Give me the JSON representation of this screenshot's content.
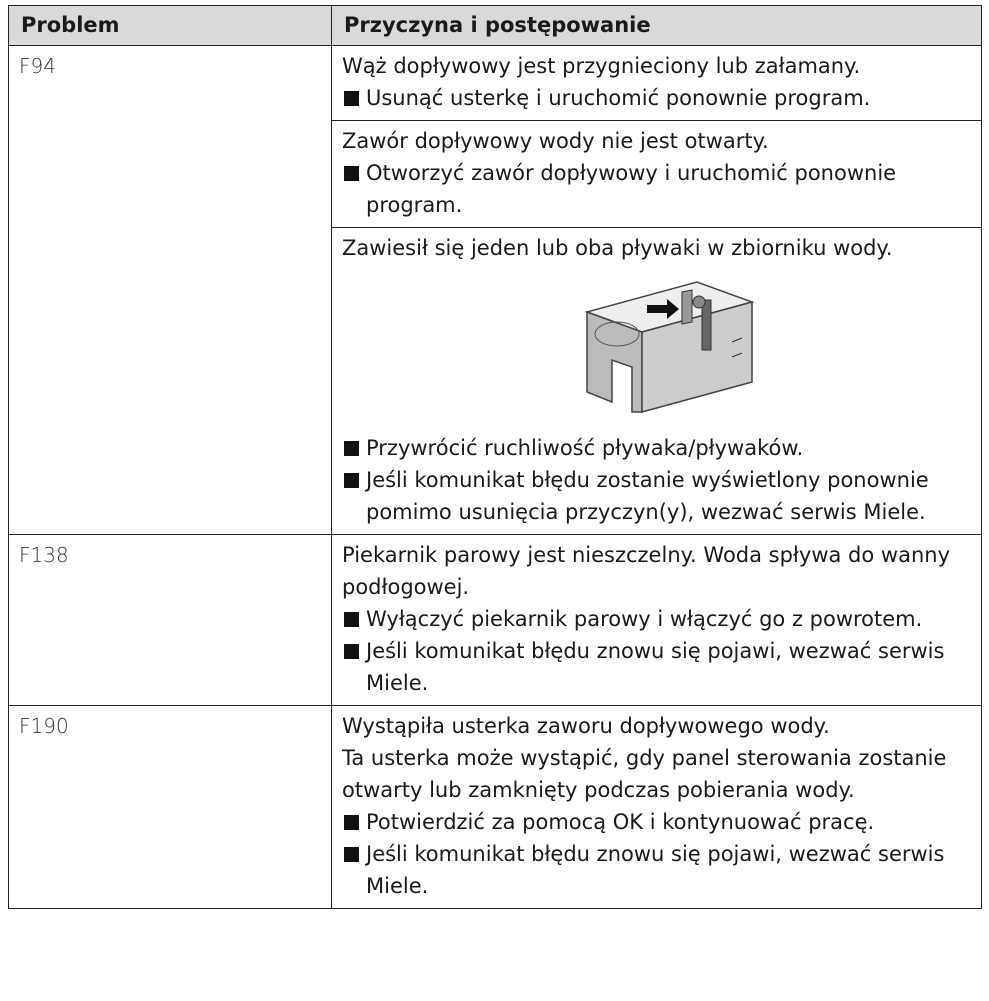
{
  "table": {
    "header": [
      "Problem",
      "Przyczyna i postępowanie"
    ],
    "rows": [
      {
        "problem": "F94",
        "causes": [
          {
            "text": [
              "Wąż dopływowy jest przygnieciony lub załamany."
            ],
            "steps": [
              "Usunąć usterkę i uruchomić ponownie program."
            ]
          },
          {
            "text": [
              "Zawór dopływowy wody nie jest otwarty."
            ],
            "steps": [
              "Otworzyć zawór dopływowy i uruchomić ponownie program."
            ]
          },
          {
            "text": [
              "Zawiesił się jeden lub oba pływaki w zbiorniku wody."
            ],
            "steps": [
              "Przywrócić ruchliwość pływaka/pływaków.",
              "Jeśli komunikat błędu zostanie wyświetlony ponownie pomimo usunięcia przyczyn(y), wezwać serwis Miele."
            ]
          }
        ]
      },
      {
        "problem": "F138",
        "causes": [
          {
            "text": [
              "Piekarnik parowy jest nieszczelny. Woda spływa do wanny podłogowej."
            ],
            "steps": [
              "Wyłączyć piekarnik parowy i włączyć go z powrotem.",
              "Jeśli komunikat błędu znowu się pojawi, wezwać serwis Miele."
            ]
          }
        ]
      },
      {
        "problem": "F190",
        "causes": [
          {
            "text": [
              "Wystąpiła usterka zaworu dopływowego wody.",
              "Ta usterka może wystąpić, gdy panel sterowania zostanie otwarty lub zamknięty podczas pobierania wody."
            ],
            "steps": [
              "Potwierdzić za pomocą OK i kontynuować pracę.",
              "Jeśli komunikat błędu znowu się pojawi, wezwać serwis Miele."
            ]
          }
        ]
      }
    ]
  }
}
